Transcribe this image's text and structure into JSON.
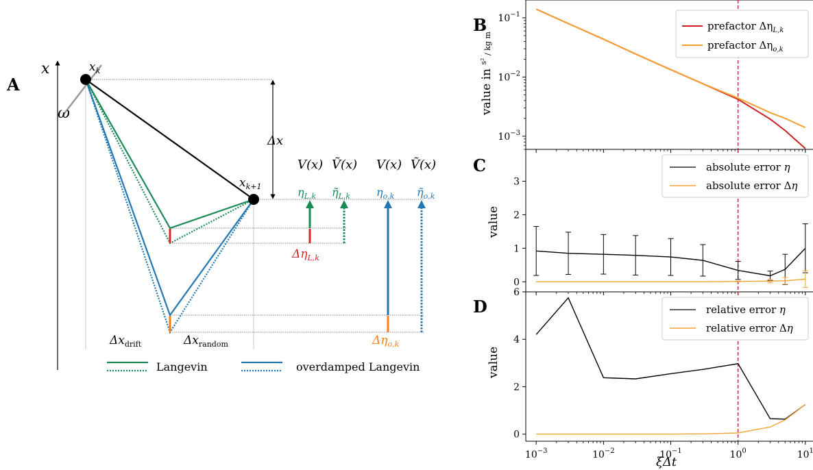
{
  "colors": {
    "langevin": "#1a8a55",
    "overdamped": "#1f77b4",
    "red": "#d62728",
    "orange": "#ff7f0e",
    "line_orange": "#f5a030",
    "prefactor_red": "#cc2020",
    "vline": "#b22222",
    "black": "#000000",
    "grey": "#999999"
  },
  "diagram": {
    "label": "A",
    "axis_x": "x",
    "omega": "ω",
    "x_k": "x_k",
    "x_k1": "x_{k+1}",
    "delta_x": "Δx",
    "delta_x_drift": "Δx_drift",
    "delta_x_random": "Δx_random",
    "col_V1": "V(x)",
    "col_Vt1": "Ṽ(x)",
    "col_V2": "V(x)",
    "col_Vt2": "Ṽ(x)",
    "eta_L": "η_{L,k}",
    "eta_L_tilde": "η̃_{L,k}",
    "eta_o": "η_{o,k}",
    "eta_o_tilde": "η̃_{o,k}",
    "d_eta_L": "Δη_{L,k}",
    "d_eta_o": "Δη_{o,k}",
    "legend": {
      "langevin": "Langevin",
      "overdamped": "overdamped Langevin"
    }
  },
  "chart_data": [
    {
      "panel": "B",
      "type": "line",
      "x_scale": "log",
      "y_scale": "log",
      "ylabel": "value in s²/(kg m)",
      "xlim": [
        0.0007,
        13
      ],
      "ylim": [
        0.0006,
        0.2
      ],
      "yticks": [
        0.001,
        0.01,
        0.1
      ],
      "ytick_labels": [
        "10^{-3}",
        "10^{-2}",
        "10^{-1}"
      ],
      "vline_x": 1,
      "legend_position": "top-right",
      "series": [
        {
          "name": "prefactor Δη_{L,k}",
          "color_key": "prefactor_red",
          "x": [
            0.001,
            0.003,
            0.01,
            0.03,
            0.1,
            0.3,
            1,
            3,
            5,
            10
          ],
          "y": [
            0.14,
            0.08,
            0.0435,
            0.0245,
            0.0133,
            0.0077,
            0.0042,
            0.00195,
            0.00125,
            0.00062
          ]
        },
        {
          "name": "prefactor Δη_{o,k}",
          "color_key": "line_orange",
          "x": [
            0.001,
            0.003,
            0.01,
            0.03,
            0.1,
            0.3,
            1,
            3,
            5,
            10
          ],
          "y": [
            0.14,
            0.08,
            0.0435,
            0.0245,
            0.0133,
            0.0077,
            0.0044,
            0.0025,
            0.002,
            0.0014
          ]
        }
      ]
    },
    {
      "panel": "C",
      "type": "line",
      "x_scale": "log",
      "ylabel": "value",
      "xlim": [
        0.0007,
        13
      ],
      "ylim": [
        -0.3,
        3.95
      ],
      "yticks": [
        0,
        1,
        2,
        3
      ],
      "vline_x": 1,
      "legend_position": "top-right",
      "series": [
        {
          "name": "absolute error η",
          "color_key": "black",
          "x": [
            0.001,
            0.003,
            0.01,
            0.03,
            0.1,
            0.3,
            1,
            3,
            5,
            10
          ],
          "y": [
            0.92,
            0.85,
            0.82,
            0.79,
            0.74,
            0.64,
            0.34,
            0.18,
            0.37,
            1.0
          ],
          "err": [
            0.73,
            0.63,
            0.59,
            0.59,
            0.55,
            0.47,
            0.27,
            0.14,
            0.45,
            0.73
          ]
        },
        {
          "name": "absolute error Δη",
          "color_key": "line_orange",
          "x": [
            0.001,
            0.003,
            0.01,
            0.03,
            0.1,
            0.3,
            1,
            3,
            5,
            10
          ],
          "y": [
            0.0,
            0.0,
            0.0,
            0.0,
            0.0,
            0.0,
            0.01,
            0.02,
            0.03,
            0.08
          ],
          "err": [
            0,
            0,
            0,
            0,
            0,
            0,
            0.01,
            0.05,
            0.1,
            0.25
          ]
        }
      ]
    },
    {
      "panel": "D",
      "type": "line",
      "x_scale": "log",
      "xlabel": "ξΔt",
      "ylabel": "value",
      "xlim": [
        0.0007,
        13
      ],
      "ylim": [
        -0.3,
        6.0
      ],
      "yticks": [
        0,
        2,
        4,
        6
      ],
      "xticks": [
        0.001,
        0.01,
        0.1,
        1,
        10
      ],
      "xtick_labels": [
        "10^{-3}",
        "10^{-2}",
        "10^{-1}",
        "10^{0}",
        "10^{1}"
      ],
      "vline_x": 1,
      "legend_position": "top-right",
      "series": [
        {
          "name": "relative error η",
          "color_key": "black",
          "x": [
            0.001,
            0.003,
            0.01,
            0.03,
            0.1,
            0.3,
            1,
            3,
            5,
            10
          ],
          "y": [
            4.2,
            5.75,
            2.38,
            2.33,
            2.55,
            2.73,
            2.97,
            0.65,
            0.63,
            1.25
          ]
        },
        {
          "name": "relative error Δη",
          "color_key": "line_orange",
          "x": [
            0.001,
            0.003,
            0.01,
            0.03,
            0.1,
            0.3,
            1,
            3,
            5,
            10
          ],
          "y": [
            0.0,
            0.0,
            0.0,
            0.0,
            0.0,
            0.01,
            0.05,
            0.3,
            0.6,
            1.25
          ]
        }
      ]
    }
  ]
}
